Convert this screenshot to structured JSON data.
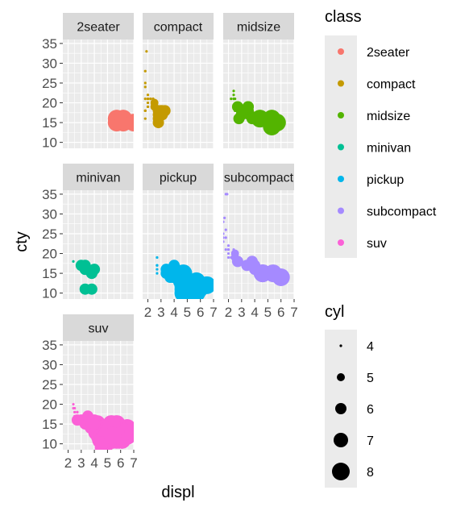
{
  "chart_data": {
    "type": "scatter",
    "xlabel": "displ",
    "ylabel": "cty",
    "xlim": [
      1.6,
      7.0
    ],
    "ylim": [
      8.5,
      36.0
    ],
    "x_ticks": [
      2,
      3,
      4,
      5,
      6,
      7
    ],
    "y_ticks": [
      10,
      15,
      20,
      25,
      30,
      35
    ],
    "grid": true,
    "color_legend": {
      "title": "class",
      "position": "right",
      "entries": [
        {
          "label": "2seater",
          "color": "#F8766D"
        },
        {
          "label": "compact",
          "color": "#C49A00"
        },
        {
          "label": "midsize",
          "color": "#53B400"
        },
        {
          "label": "minivan",
          "color": "#00C094"
        },
        {
          "label": "pickup",
          "color": "#00B6EB"
        },
        {
          "label": "subcompact",
          "color": "#A58AFF"
        },
        {
          "label": "suv",
          "color": "#FB61D7"
        }
      ]
    },
    "size_legend": {
      "title": "cyl",
      "position": "right",
      "entries": [
        {
          "label": "4",
          "value": 4
        },
        {
          "label": "5",
          "value": 5
        },
        {
          "label": "6",
          "value": 6
        },
        {
          "label": "7",
          "value": 7
        },
        {
          "label": "8",
          "value": 8
        }
      ]
    },
    "panels": [
      {
        "label": "2seater",
        "color": "#F8766D",
        "points": [
          [
            5.7,
            16,
            8
          ],
          [
            5.7,
            15,
            8
          ],
          [
            6.2,
            16,
            8
          ],
          [
            6.2,
            15,
            8
          ],
          [
            7.0,
            15,
            8
          ]
        ]
      },
      {
        "label": "compact",
        "color": "#C49A00",
        "points": [
          [
            1.8,
            18,
            4
          ],
          [
            1.8,
            21,
            4
          ],
          [
            2.0,
            20,
            4
          ],
          [
            2.0,
            21,
            4
          ],
          [
            2.8,
            16,
            6
          ],
          [
            2.8,
            18,
            6
          ],
          [
            3.1,
            18,
            6
          ],
          [
            1.8,
            18,
            4
          ],
          [
            1.8,
            16,
            4
          ],
          [
            2.0,
            20,
            4
          ],
          [
            2.0,
            19,
            4
          ],
          [
            2.8,
            15,
            6
          ],
          [
            3.1,
            17,
            6
          ],
          [
            2.2,
            21,
            4
          ],
          [
            2.2,
            21,
            4
          ],
          [
            2.4,
            21,
            4
          ],
          [
            2.4,
            21,
            4
          ],
          [
            3.0,
            18,
            6
          ],
          [
            3.3,
            18,
            6
          ],
          [
            1.8,
            24,
            4
          ],
          [
            1.8,
            25,
            4
          ],
          [
            1.9,
            33,
            4
          ],
          [
            2.0,
            21,
            4
          ],
          [
            2.0,
            19,
            4
          ],
          [
            2.0,
            22,
            4
          ],
          [
            2.5,
            19,
            5
          ],
          [
            2.5,
            20,
            5
          ],
          [
            2.8,
            17,
            6
          ],
          [
            3.0,
            18,
            6
          ],
          [
            2.0,
            21,
            4
          ],
          [
            1.8,
            28,
            4
          ]
        ]
      },
      {
        "label": "midsize",
        "color": "#53B400",
        "points": [
          [
            2.4,
            19,
            4
          ],
          [
            2.4,
            22,
            4
          ],
          [
            3.1,
            18,
            6
          ],
          [
            3.5,
            18,
            6
          ],
          [
            3.6,
            17,
            6
          ],
          [
            3.3,
            18,
            6
          ],
          [
            2.8,
            16,
            6
          ],
          [
            3.0,
            17,
            6
          ],
          [
            3.8,
            16,
            6
          ],
          [
            2.5,
            18,
            4
          ],
          [
            3.0,
            17,
            6
          ],
          [
            3.5,
            19,
            6
          ],
          [
            2.4,
            21,
            4
          ],
          [
            2.5,
            21,
            4
          ],
          [
            3.5,
            19,
            6
          ],
          [
            4.4,
            16,
            8
          ],
          [
            2.2,
            21,
            4
          ],
          [
            2.4,
            23,
            4
          ],
          [
            3.0,
            18,
            6
          ],
          [
            5.3,
            15,
            8
          ],
          [
            5.7,
            15,
            8
          ],
          [
            5.3,
            16,
            8
          ],
          [
            5.3,
            14,
            8
          ],
          [
            2.7,
            19,
            6
          ]
        ]
      },
      {
        "label": "minivan",
        "color": "#00C094",
        "points": [
          [
            2.4,
            18,
            4
          ],
          [
            3.0,
            17,
            6
          ],
          [
            3.3,
            16,
            6
          ],
          [
            3.3,
            16,
            6
          ],
          [
            3.3,
            17,
            6
          ],
          [
            3.8,
            15,
            6
          ],
          [
            3.8,
            15,
            6
          ],
          [
            3.8,
            15,
            6
          ],
          [
            4.0,
            16,
            6
          ],
          [
            3.3,
            11,
            6
          ],
          [
            3.8,
            11,
            6
          ]
        ]
      },
      {
        "label": "pickup",
        "color": "#00B6EB",
        "points": [
          [
            2.7,
            15,
            4
          ],
          [
            2.7,
            17,
            4
          ],
          [
            3.7,
            14,
            6
          ],
          [
            4.7,
            11,
            8
          ],
          [
            5.2,
            11,
            8
          ],
          [
            5.7,
            13,
            8
          ],
          [
            3.9,
            14,
            6
          ],
          [
            4.7,
            13,
            8
          ],
          [
            5.2,
            11,
            8
          ],
          [
            5.7,
            11,
            8
          ],
          [
            4.6,
            13,
            8
          ],
          [
            5.4,
            11,
            8
          ],
          [
            4.2,
            14,
            6
          ],
          [
            4.0,
            15,
            6
          ],
          [
            4.7,
            12,
            8
          ],
          [
            2.7,
            17,
            4
          ],
          [
            3.4,
            15,
            6
          ],
          [
            4.0,
            17,
            6
          ],
          [
            5.0,
            12,
            8
          ],
          [
            5.3,
            11,
            8
          ],
          [
            5.9,
            11,
            8
          ],
          [
            4.6,
            13,
            8
          ],
          [
            4.7,
            12,
            8
          ],
          [
            2.7,
            16,
            4
          ],
          [
            3.4,
            16,
            6
          ],
          [
            4.0,
            15,
            6
          ],
          [
            4.7,
            10,
            8
          ],
          [
            5.7,
            10,
            8
          ],
          [
            6.5,
            12,
            8
          ],
          [
            4.0,
            14,
            6
          ],
          [
            4.7,
            15,
            8
          ],
          [
            2.7,
            19,
            4
          ],
          [
            4.0,
            16,
            6
          ]
        ]
      },
      {
        "label": "subcompact",
        "color": "#A58AFF",
        "points": [
          [
            1.6,
            28,
            4
          ],
          [
            1.6,
            24,
            4
          ],
          [
            1.6,
            25,
            4
          ],
          [
            1.7,
            29,
            4
          ],
          [
            1.8,
            35,
            4
          ],
          [
            1.6,
            23,
            4
          ],
          [
            1.8,
            24,
            4
          ],
          [
            1.9,
            35,
            4
          ],
          [
            2.0,
            21,
            4
          ],
          [
            2.0,
            20,
            4
          ],
          [
            2.0,
            21,
            4
          ],
          [
            2.0,
            19,
            4
          ],
          [
            2.5,
            19,
            5
          ],
          [
            2.5,
            20,
            5
          ],
          [
            1.8,
            26,
            4
          ],
          [
            1.8,
            21,
            4
          ],
          [
            2.0,
            22,
            4
          ],
          [
            2.4,
            21,
            4
          ],
          [
            3.8,
            18,
            6
          ],
          [
            3.8,
            18,
            6
          ],
          [
            4.0,
            17,
            6
          ],
          [
            4.0,
            16,
            6
          ],
          [
            4.6,
            15,
            8
          ],
          [
            4.6,
            15,
            8
          ],
          [
            4.6,
            15,
            8
          ],
          [
            5.4,
            15,
            8
          ],
          [
            2.5,
            20,
            4
          ],
          [
            2.5,
            20,
            4
          ],
          [
            2.2,
            19,
            4
          ],
          [
            2.5,
            18,
            4
          ],
          [
            2.7,
            18,
            6
          ],
          [
            3.4,
            17,
            6
          ],
          [
            6.0,
            14,
            8
          ]
        ]
      },
      {
        "label": "suv",
        "color": "#FB61D7",
        "points": [
          [
            5.3,
            14,
            8
          ],
          [
            5.3,
            11,
            8
          ],
          [
            5.3,
            14,
            8
          ],
          [
            5.7,
            13,
            8
          ],
          [
            6.0,
            12,
            8
          ],
          [
            6.5,
            12,
            8
          ],
          [
            4.0,
            14,
            6
          ],
          [
            4.7,
            9,
            8
          ],
          [
            5.7,
            11,
            8
          ],
          [
            6.1,
            11,
            8
          ],
          [
            5.0,
            12,
            8
          ],
          [
            4.2,
            15,
            6
          ],
          [
            4.0,
            14,
            6
          ],
          [
            4.6,
            13,
            8
          ],
          [
            5.4,
            11,
            8
          ],
          [
            2.5,
            18,
            4
          ],
          [
            2.5,
            18,
            4
          ],
          [
            2.5,
            19,
            4
          ],
          [
            2.5,
            17,
            4
          ],
          [
            2.7,
            16,
            6
          ],
          [
            3.3,
            15,
            6
          ],
          [
            4.0,
            14,
            6
          ],
          [
            4.4,
            13,
            8
          ],
          [
            4.6,
            13,
            8
          ],
          [
            4.7,
            12,
            8
          ],
          [
            5.4,
            11,
            8
          ],
          [
            5.4,
            12,
            8
          ],
          [
            4.2,
            14,
            8
          ],
          [
            4.7,
            13,
            8
          ],
          [
            5.9,
            11,
            8
          ],
          [
            2.7,
            18,
            4
          ],
          [
            2.7,
            18,
            4
          ],
          [
            3.7,
            14,
            6
          ],
          [
            5.2,
            11,
            8
          ],
          [
            4.5,
            11,
            8
          ],
          [
            4.0,
            16,
            6
          ],
          [
            4.0,
            15,
            6
          ],
          [
            3.0,
            16,
            6
          ],
          [
            4.2,
            13,
            8
          ],
          [
            4.7,
            13,
            8
          ],
          [
            5.7,
            14,
            8
          ],
          [
            6.1,
            11,
            8
          ],
          [
            6.5,
            14,
            8
          ],
          [
            2.4,
            20,
            4
          ],
          [
            2.4,
            19,
            4
          ],
          [
            3.5,
            15,
            6
          ],
          [
            3.8,
            15,
            6
          ],
          [
            3.5,
            17,
            6
          ],
          [
            4.0,
            15,
            6
          ],
          [
            4.4,
            12,
            8
          ],
          [
            5.0,
            12,
            8
          ],
          [
            5.7,
            15,
            8
          ],
          [
            4.7,
            11,
            8
          ],
          [
            6.0,
            12,
            8
          ],
          [
            6.2,
            13,
            8
          ],
          [
            5.3,
            13,
            8
          ],
          [
            5.6,
            13,
            8
          ],
          [
            5.3,
            15,
            8
          ],
          [
            4.2,
            15,
            8
          ],
          [
            4.6,
            14,
            8
          ],
          [
            5.4,
            12,
            8
          ]
        ]
      }
    ]
  }
}
